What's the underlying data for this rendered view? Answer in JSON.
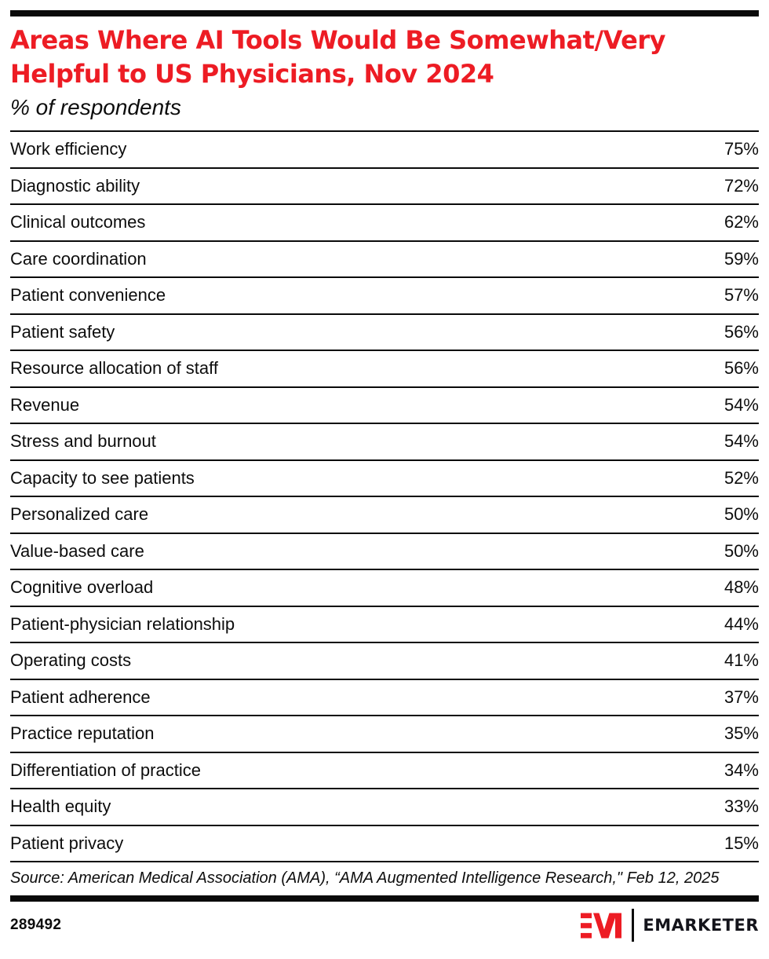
{
  "page": {
    "title_line1": "Areas Where AI Tools Would Be Somewhat/Very",
    "title_line2": "Helpful to US Physicians, Nov 2024",
    "subtitle": "% of respondents",
    "source": "Source: American Medical Association (AMA), “AMA Augmented Intelligence Research,\" Feb 12, 2025",
    "chart_id": "289492",
    "brand_name": "EMARKETER",
    "colors": {
      "accent_red": "#ED1C24",
      "text_black": "#0D0D0D",
      "rule_black": "#0A0A0A",
      "background": "#FFFFFF"
    }
  },
  "chart_data": {
    "type": "table",
    "title": "Areas Where AI Tools Would Be Somewhat/Very Helpful to US Physicians, Nov 2024",
    "subtitle": "% of respondents",
    "unit": "% of respondents",
    "value_suffix": "%",
    "categories": [
      "Work efficiency",
      "Diagnostic ability",
      "Clinical outcomes",
      "Care coordination",
      "Patient convenience",
      "Patient safety",
      "Resource allocation of staff",
      "Revenue",
      "Stress and burnout",
      "Capacity to see patients",
      "Personalized care",
      "Value-based care",
      "Cognitive overload",
      "Patient-physician relationship",
      "Operating costs",
      "Patient adherence",
      "Practice reputation",
      "Differentiation of practice",
      "Health equity",
      "Patient privacy"
    ],
    "values": [
      75,
      72,
      62,
      59,
      57,
      56,
      56,
      54,
      54,
      52,
      50,
      50,
      48,
      44,
      41,
      37,
      35,
      34,
      33,
      15
    ],
    "source": "Source: American Medical Association (AMA), “AMA Augmented Intelligence Research,\" Feb 12, 2025",
    "legend": "none",
    "grid": "horizontal-rules"
  }
}
